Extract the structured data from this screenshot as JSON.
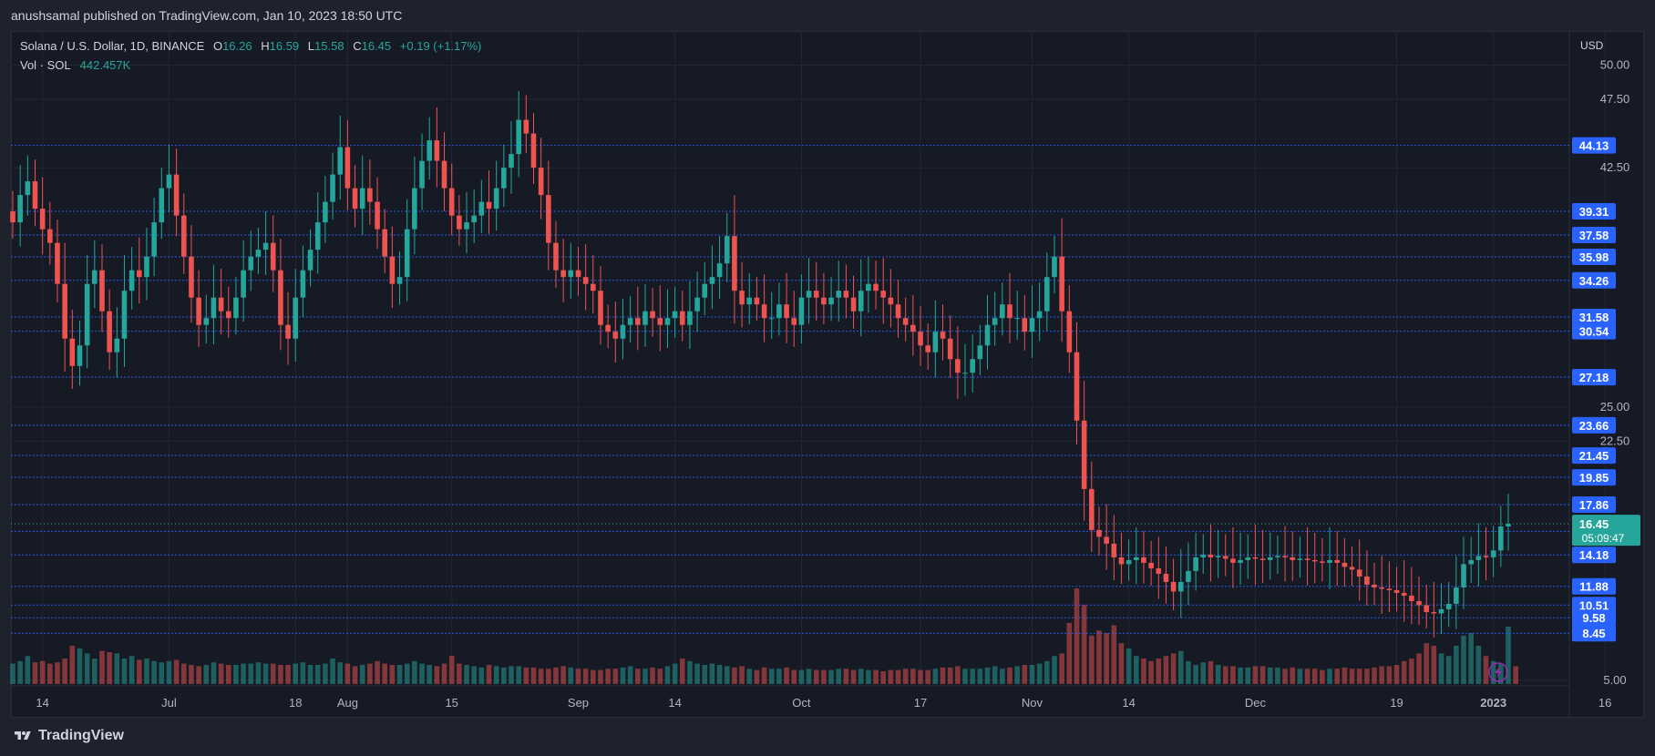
{
  "header": {
    "published": "anushsamal published on TradingView.com, Jan 10, 2023 18:50 UTC"
  },
  "legend": {
    "symbol": "Solana / U.S. Dollar, 1D, BINANCE",
    "o_label": "O",
    "o": "16.26",
    "h_label": "H",
    "h": "16.59",
    "l_label": "L",
    "l": "15.58",
    "c_label": "C",
    "c": "16.45",
    "change": "+0.19 (+1.17%)",
    "vol_label": "Vol · SOL",
    "vol": "442.457K"
  },
  "footer": {
    "brand": "TradingView"
  },
  "colors": {
    "up": "#26a69a",
    "down": "#ef5350",
    "level": "#2962ff",
    "bg": "#161a25"
  },
  "chart_data": {
    "type": "candlestick",
    "title": "Solana / U.S. Dollar, 1D, BINANCE",
    "currency": "USD",
    "ylim": [
      2.5,
      52.5
    ],
    "y_ticks": [
      "5.00",
      "22.50",
      "25.00",
      "42.50",
      "47.50",
      "50.00"
    ],
    "x_ticks": [
      {
        "label": "14",
        "i": 4
      },
      {
        "label": "Jul",
        "i": 21
      },
      {
        "label": "18",
        "i": 38
      },
      {
        "label": "Aug",
        "i": 45
      },
      {
        "label": "15",
        "i": 59
      },
      {
        "label": "Sep",
        "i": 76
      },
      {
        "label": "14",
        "i": 89
      },
      {
        "label": "Oct",
        "i": 106
      },
      {
        "label": "17",
        "i": 122
      },
      {
        "label": "Nov",
        "i": 137
      },
      {
        "label": "14",
        "i": 150
      },
      {
        "label": "Dec",
        "i": 167
      },
      {
        "label": "19",
        "i": 186
      },
      {
        "label": "2023",
        "i": 199
      },
      {
        "label": "16",
        "i": 214
      }
    ],
    "level_lines": [
      "44.13",
      "39.31",
      "37.58",
      "35.98",
      "34.26",
      "31.58",
      "30.54",
      "27.18",
      "23.66",
      "21.45",
      "19.85",
      "17.86",
      "15.90",
      "14.18",
      "11.88",
      "10.51",
      "9.58",
      "8.45"
    ],
    "last_price": "16.45",
    "countdown": "05:09:47",
    "closes": [
      38.5,
      40.5,
      41.5,
      39.5,
      38,
      37,
      34,
      30,
      28,
      29.5,
      34,
      35,
      32,
      29,
      30,
      33.5,
      35,
      34.5,
      36,
      38.5,
      41,
      42,
      39,
      36,
      33,
      31,
      31.5,
      33,
      32,
      31.5,
      33,
      35,
      36,
      36.5,
      37,
      35,
      31,
      30,
      33,
      35,
      36.5,
      38.5,
      40,
      42,
      44,
      41,
      39.5,
      41,
      40,
      38,
      36,
      34,
      34.5,
      38,
      41,
      43,
      44.5,
      43,
      41,
      39,
      38,
      38.5,
      39,
      40,
      39.5,
      41,
      42.5,
      43.5,
      46,
      45,
      42.5,
      40.5,
      37,
      35,
      34.5,
      35,
      34.5,
      34,
      33.5,
      31,
      30.5,
      30,
      31,
      31.5,
      31,
      32,
      31.5,
      31,
      31.5,
      32,
      31,
      32,
      33,
      34,
      34.5,
      35.5,
      37.5,
      33.5,
      32.5,
      33,
      32.5,
      31.5,
      31.5,
      32.5,
      31.5,
      31,
      33,
      33.5,
      33,
      32.5,
      33,
      33.5,
      33,
      32,
      33.5,
      34,
      33.5,
      33,
      32.5,
      31.5,
      31,
      30.5,
      29.5,
      29,
      30.5,
      30,
      28.5,
      27.5,
      27.5,
      28.5,
      29.5,
      31,
      31.5,
      32.5,
      31.5,
      31.5,
      30.5,
      31.5,
      32,
      34.5,
      36,
      32,
      29,
      24,
      19,
      16,
      15.5,
      15,
      14,
      13.5,
      13.8,
      14,
      13.6,
      13.2,
      12.8,
      12.2,
      11.5,
      12.2,
      13,
      14,
      14.2,
      14,
      14.1,
      13.9,
      13.6,
      13.8,
      14,
      13.9,
      13.8,
      14,
      14.1,
      14,
      13.8,
      13.9,
      13.8,
      13.7,
      13.6,
      13.8,
      13.6,
      13.3,
      13.1,
      12.6,
      12,
      11.8,
      11.7,
      11.6,
      11.4,
      11.2,
      10.8,
      10.5,
      10,
      9.9,
      10.2,
      10.6,
      11.8,
      13.5,
      13.8,
      14.1,
      14,
      14.5,
      16.26,
      16.45
    ],
    "volumes": [
      0.16,
      0.18,
      0.22,
      0.17,
      0.18,
      0.16,
      0.17,
      0.2,
      0.3,
      0.28,
      0.24,
      0.2,
      0.26,
      0.25,
      0.24,
      0.2,
      0.22,
      0.19,
      0.2,
      0.18,
      0.17,
      0.18,
      0.19,
      0.16,
      0.15,
      0.14,
      0.15,
      0.17,
      0.16,
      0.15,
      0.15,
      0.16,
      0.16,
      0.17,
      0.16,
      0.16,
      0.15,
      0.15,
      0.16,
      0.17,
      0.15,
      0.15,
      0.16,
      0.2,
      0.17,
      0.16,
      0.14,
      0.15,
      0.16,
      0.18,
      0.16,
      0.15,
      0.15,
      0.16,
      0.18,
      0.16,
      0.15,
      0.14,
      0.16,
      0.22,
      0.16,
      0.15,
      0.14,
      0.13,
      0.15,
      0.14,
      0.13,
      0.14,
      0.14,
      0.13,
      0.13,
      0.12,
      0.12,
      0.13,
      0.14,
      0.13,
      0.12,
      0.12,
      0.11,
      0.11,
      0.12,
      0.12,
      0.13,
      0.14,
      0.12,
      0.12,
      0.13,
      0.12,
      0.14,
      0.16,
      0.2,
      0.18,
      0.16,
      0.15,
      0.16,
      0.15,
      0.14,
      0.13,
      0.14,
      0.12,
      0.11,
      0.13,
      0.12,
      0.12,
      0.13,
      0.11,
      0.11,
      0.12,
      0.11,
      0.11,
      0.11,
      0.12,
      0.12,
      0.11,
      0.12,
      0.11,
      0.11,
      0.1,
      0.11,
      0.11,
      0.12,
      0.12,
      0.11,
      0.11,
      0.12,
      0.13,
      0.13,
      0.14,
      0.12,
      0.12,
      0.12,
      0.13,
      0.14,
      0.12,
      0.13,
      0.14,
      0.15,
      0.15,
      0.16,
      0.18,
      0.22,
      0.24,
      0.48,
      0.75,
      0.62,
      0.38,
      0.42,
      0.4,
      0.46,
      0.32,
      0.28,
      0.22,
      0.2,
      0.18,
      0.2,
      0.22,
      0.24,
      0.26,
      0.18,
      0.15,
      0.17,
      0.18,
      0.15,
      0.14,
      0.14,
      0.13,
      0.13,
      0.14,
      0.14,
      0.13,
      0.13,
      0.12,
      0.13,
      0.12,
      0.12,
      0.12,
      0.11,
      0.12,
      0.12,
      0.13,
      0.12,
      0.12,
      0.12,
      0.13,
      0.14,
      0.14,
      0.15,
      0.18,
      0.2,
      0.24,
      0.32,
      0.3,
      0.24,
      0.22,
      0.3,
      0.38,
      0.4,
      0.3,
      0.22,
      0.18,
      0.16,
      0.45,
      0.14
    ]
  }
}
